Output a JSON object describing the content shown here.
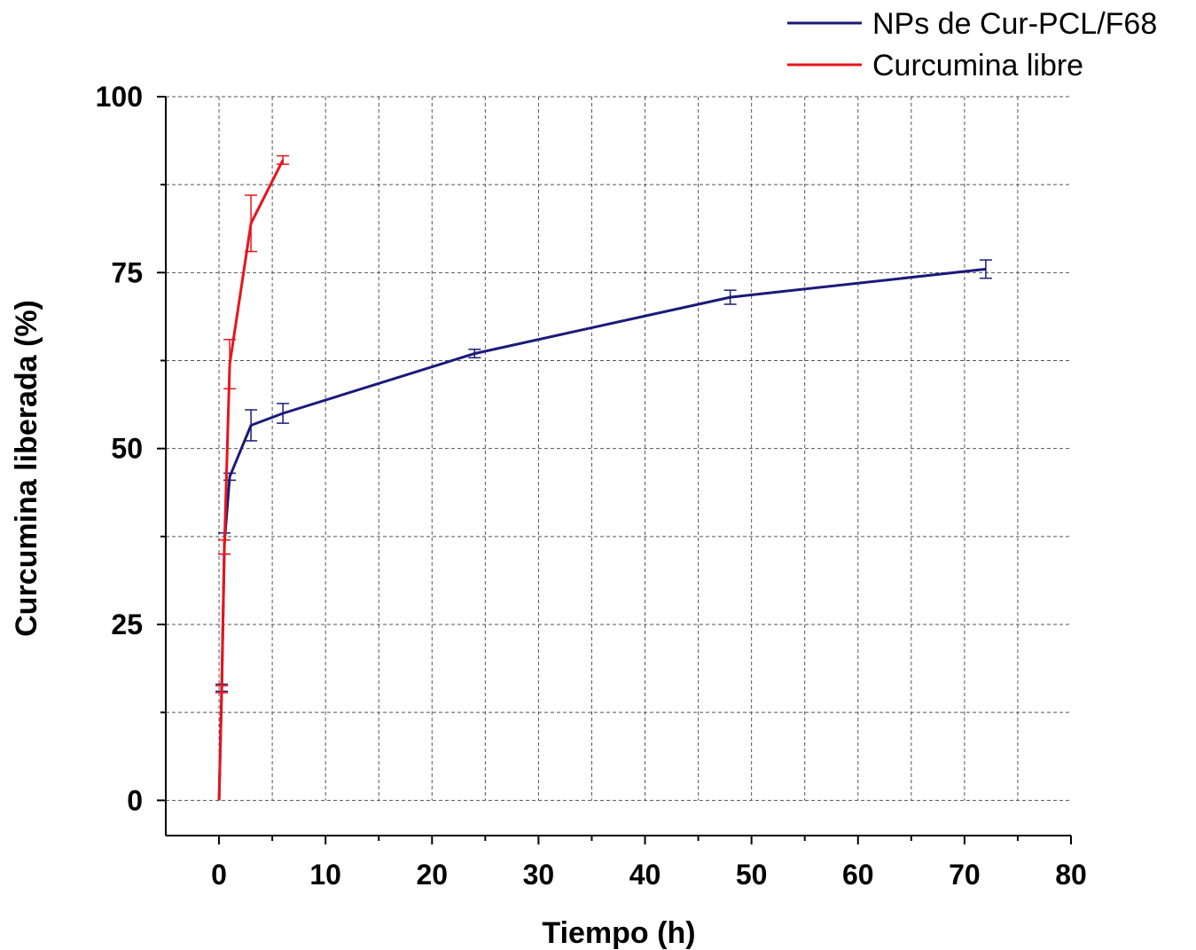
{
  "chart_data": {
    "type": "line",
    "title": "",
    "xlabel": "Tiempo (h)",
    "ylabel": "Curcumina liberada (%)",
    "xlim": [
      -5,
      80
    ],
    "ylim": [
      -5,
      100
    ],
    "x_ticks": [
      0,
      10,
      20,
      30,
      40,
      50,
      60,
      70,
      80
    ],
    "y_ticks": [
      0,
      25,
      50,
      75,
      100
    ],
    "grid": true,
    "legend_position": "top-right",
    "series": [
      {
        "name": "NPs de Cur-PCL/F68",
        "color": "#1a1a7a",
        "x": [
          0,
          0.25,
          0.5,
          1,
          3,
          6,
          24,
          48,
          72
        ],
        "y": [
          0,
          16,
          36.5,
          46,
          53.3,
          55,
          63.5,
          71.5,
          75.5
        ],
        "error": [
          0,
          0.5,
          1.5,
          0.5,
          2.2,
          1.4,
          0.6,
          1.0,
          1.3
        ]
      },
      {
        "name": "Curcumina libre",
        "color": "#e8141b",
        "x": [
          0,
          0.25,
          0.5,
          1,
          3,
          6
        ],
        "y": [
          0,
          15.8,
          36,
          62,
          82,
          91
        ],
        "error": [
          0,
          0.5,
          1.0,
          3.5,
          4.0,
          0.6
        ]
      }
    ]
  }
}
